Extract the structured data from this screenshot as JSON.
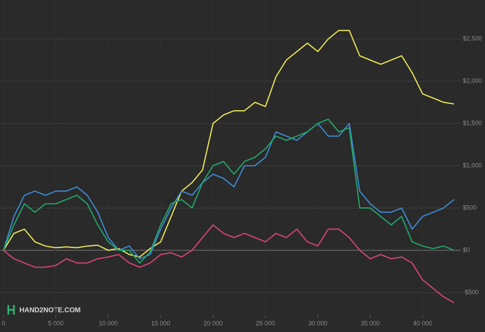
{
  "chart_data": {
    "type": "line",
    "watermark": "HAND2NOTE.COM",
    "x": [
      0,
      1000,
      2000,
      3000,
      4000,
      5000,
      6000,
      7000,
      8000,
      9000,
      10000,
      11000,
      12000,
      13000,
      14000,
      15000,
      16000,
      17000,
      18000,
      19000,
      20000,
      21000,
      22000,
      23000,
      24000,
      25000,
      26000,
      27000,
      28000,
      29000,
      30000,
      31000,
      32000,
      33000,
      34000,
      35000,
      36000,
      37000,
      38000,
      39000,
      40000,
      41000,
      42000,
      43000
    ],
    "series": [
      {
        "color": "#f3ee58",
        "values": [
          0,
          200,
          250,
          100,
          50,
          30,
          40,
          30,
          50,
          60,
          0,
          20,
          -50,
          -80,
          20,
          100,
          400,
          700,
          800,
          950,
          1500,
          1600,
          1650,
          1650,
          1750,
          1700,
          2050,
          2250,
          2350,
          2450,
          2350,
          2500,
          2600,
          2600,
          2300,
          2250,
          2200,
          2250,
          2300,
          2100,
          1850,
          1800,
          1750,
          1730
        ]
      },
      {
        "color": "#3d8fdc",
        "values": [
          0,
          400,
          650,
          700,
          650,
          700,
          700,
          750,
          650,
          450,
          150,
          0,
          50,
          -100,
          -50,
          250,
          500,
          700,
          650,
          800,
          900,
          850,
          750,
          1000,
          1000,
          1100,
          1400,
          1350,
          1300,
          1400,
          1500,
          1350,
          1350,
          1500,
          700,
          550,
          450,
          450,
          500,
          250,
          400,
          450,
          500,
          600
        ]
      },
      {
        "color": "#22ad6c",
        "values": [
          0,
          300,
          550,
          450,
          550,
          550,
          600,
          650,
          550,
          300,
          100,
          0,
          0,
          -150,
          -20,
          300,
          550,
          600,
          500,
          800,
          1000,
          1050,
          900,
          1050,
          1100,
          1200,
          1350,
          1300,
          1350,
          1400,
          1500,
          1550,
          1400,
          1450,
          500,
          500,
          400,
          300,
          400,
          100,
          50,
          20,
          50,
          0
        ]
      },
      {
        "color": "#de467a",
        "values": [
          0,
          -100,
          -150,
          -200,
          -200,
          -180,
          -100,
          -150,
          -150,
          -100,
          -80,
          -50,
          -150,
          -200,
          -150,
          -50,
          -30,
          -80,
          0,
          150,
          300,
          200,
          150,
          200,
          150,
          100,
          200,
          150,
          250,
          100,
          50,
          250,
          250,
          150,
          0,
          -100,
          -50,
          -100,
          -80,
          -150,
          -350,
          -450,
          -550,
          -620
        ]
      }
    ],
    "xlim": [
      -330,
      43640
    ],
    "ylim": [
      -770,
      2960
    ],
    "xticks": [
      0,
      {
        "value": 5000,
        "label": "5 000"
      },
      {
        "value": 10000,
        "label": "10 000"
      },
      {
        "value": 15000,
        "label": "15 000"
      },
      {
        "value": 20000,
        "label": "20 000"
      },
      {
        "value": 25000,
        "label": "25 000"
      },
      {
        "value": 30000,
        "label": "30 000"
      },
      {
        "value": 35000,
        "label": "35 000"
      },
      {
        "value": 40000,
        "label": "40 000"
      }
    ],
    "yticks": [
      {
        "value": -500,
        "label": "-$500"
      },
      {
        "value": 0,
        "label": "$0"
      },
      {
        "value": 500,
        "label": "$500"
      },
      {
        "value": 1000,
        "label": "$1,000"
      },
      {
        "value": 1500,
        "label": "$1,500"
      },
      {
        "value": 2000,
        "label": "$2,000"
      },
      {
        "value": 2500,
        "label": "$2,500"
      }
    ],
    "grid": true
  }
}
